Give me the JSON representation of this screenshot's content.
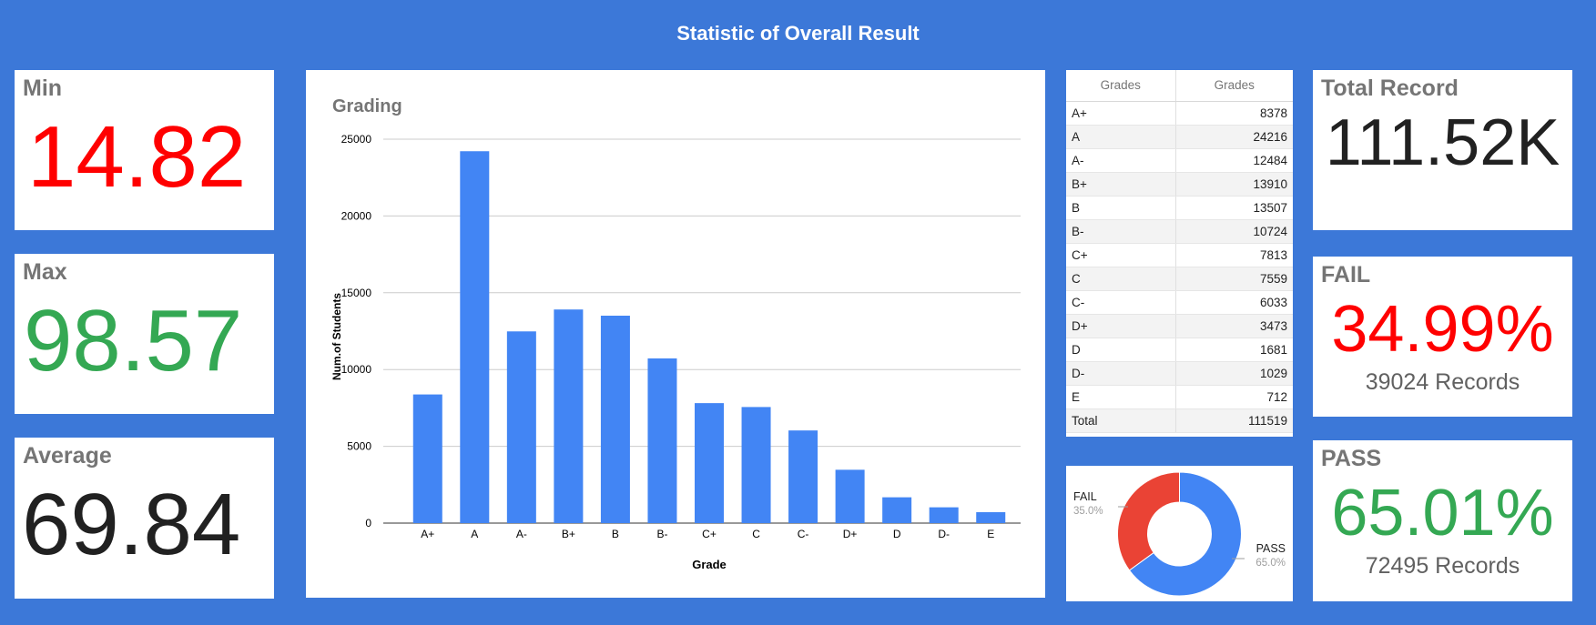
{
  "title": "Statistic of Overall Result",
  "colors": {
    "background": "#3c78d8",
    "bar": "#4285f4",
    "fail": "#ea4335",
    "pass": "#34a853",
    "red_text": "#ff0000",
    "green_text": "#34a853"
  },
  "min": {
    "label": "Min",
    "value": "14.82"
  },
  "max": {
    "label": "Max",
    "value": "98.57"
  },
  "average": {
    "label": "Average",
    "value": "69.84"
  },
  "total_record": {
    "label": "Total Record",
    "value": "111.52K"
  },
  "fail": {
    "label": "FAIL",
    "value": "34.99%",
    "records": "39024 Records"
  },
  "pass": {
    "label": "PASS",
    "value": "65.01%",
    "records": "72495 Records"
  },
  "table": {
    "headers": [
      "Grades",
      "Grades"
    ],
    "rows": [
      [
        "A+",
        "8378"
      ],
      [
        "A",
        "24216"
      ],
      [
        "A-",
        "12484"
      ],
      [
        "B+",
        "13910"
      ],
      [
        "B",
        "13507"
      ],
      [
        "B-",
        "10724"
      ],
      [
        "C+",
        "7813"
      ],
      [
        "C",
        "7559"
      ],
      [
        "C-",
        "6033"
      ],
      [
        "D+",
        "3473"
      ],
      [
        "D",
        "1681"
      ],
      [
        "D-",
        "1029"
      ],
      [
        "E",
        "712"
      ]
    ],
    "total": [
      "Total",
      "111519"
    ]
  },
  "chart_data": [
    {
      "type": "bar",
      "title": "Grading",
      "xlabel": "Grade",
      "ylabel": "Num.of Students",
      "categories": [
        "A+",
        "A",
        "A-",
        "B+",
        "B",
        "B-",
        "C+",
        "C",
        "C-",
        "D+",
        "D",
        "D-",
        "E"
      ],
      "values": [
        8378,
        24216,
        12484,
        13910,
        13507,
        10724,
        7813,
        7559,
        6033,
        3473,
        1681,
        1029,
        712
      ],
      "ylim": [
        0,
        25000
      ],
      "yticks": [
        "25000",
        "20000",
        "15000",
        "10000",
        "5000",
        "0"
      ],
      "grid": true,
      "legend": "none"
    },
    {
      "type": "pie",
      "donut": true,
      "slices": [
        {
          "label": "FAIL",
          "pct_label": "35.0%",
          "value": 35.0
        },
        {
          "label": "PASS",
          "pct_label": "65.0%",
          "value": 65.0
        }
      ],
      "legend": "labels"
    }
  ]
}
